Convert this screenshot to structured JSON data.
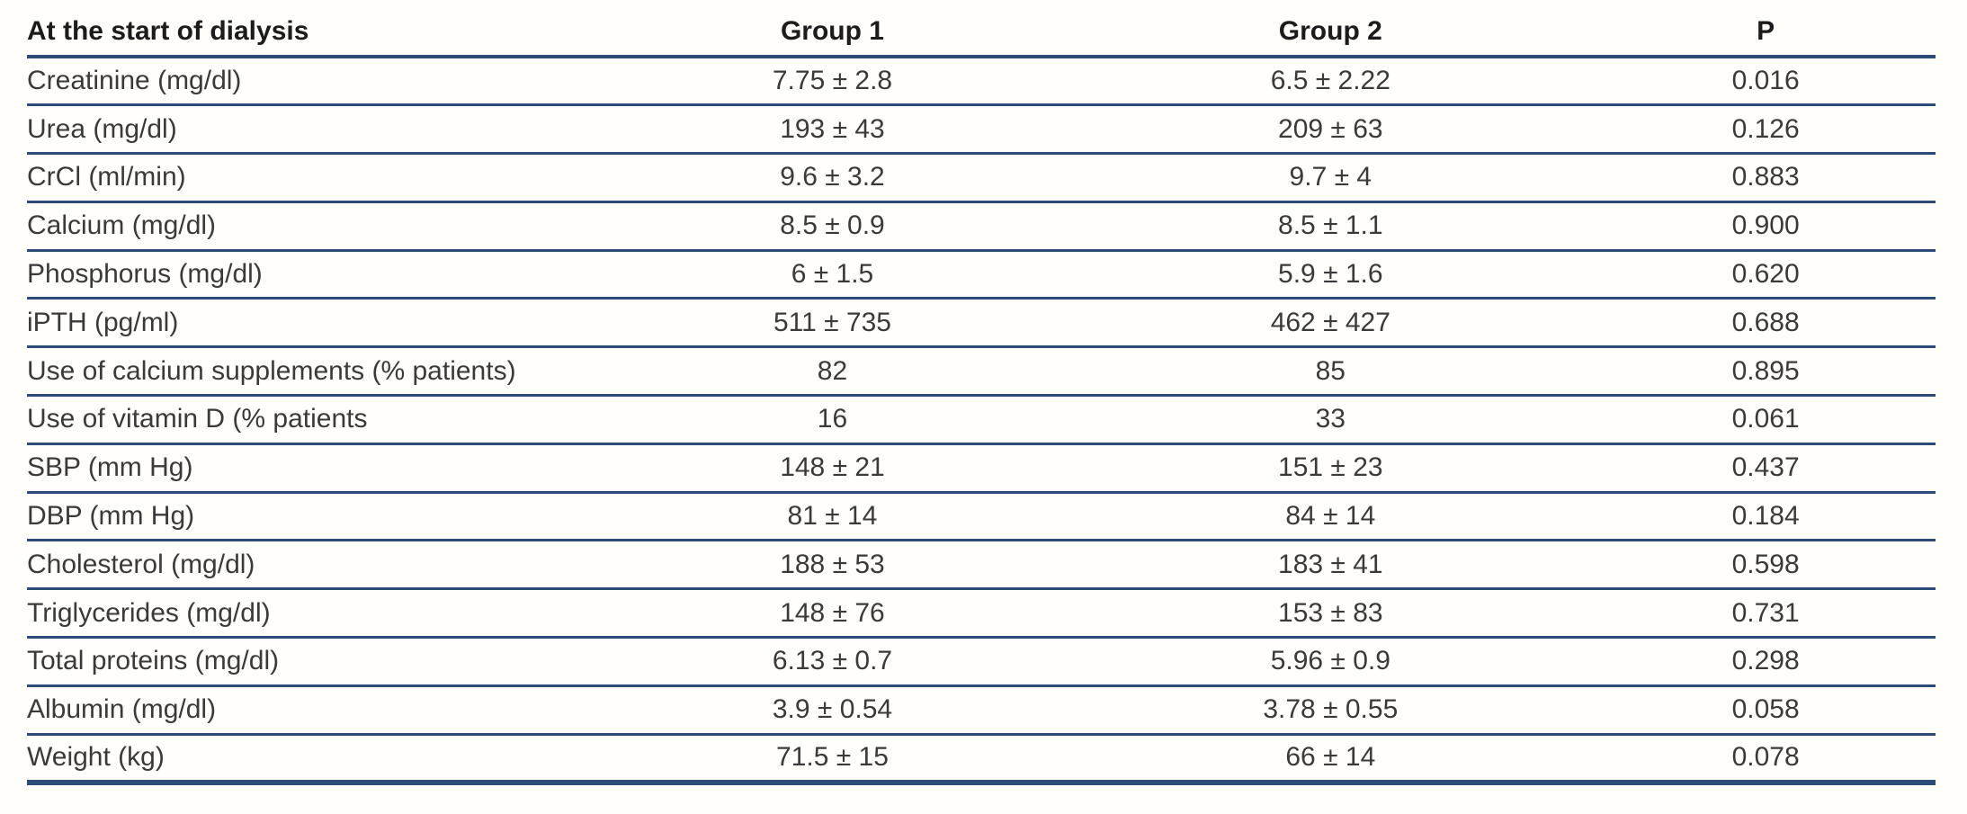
{
  "table": {
    "headers": {
      "label": "At the start of dialysis",
      "group1": "Group 1",
      "group2": "Group 2",
      "p": "P"
    },
    "rows": [
      {
        "label": "Creatinine (mg/dl)",
        "group1": "7.75 ± 2.8",
        "group2": "6.5 ± 2.22",
        "p": "0.016"
      },
      {
        "label": "Urea (mg/dl)",
        "group1": "193 ± 43",
        "group2": "209 ± 63",
        "p": "0.126"
      },
      {
        "label": "CrCl (ml/min)",
        "group1": "9.6 ± 3.2",
        "group2": "9.7 ± 4",
        "p": "0.883"
      },
      {
        "label": "Calcium (mg/dl)",
        "group1": "8.5 ± 0.9",
        "group2": "8.5 ± 1.1",
        "p": "0.900"
      },
      {
        "label": "Phosphorus (mg/dl)",
        "group1": "6 ± 1.5",
        "group2": "5.9 ± 1.6",
        "p": "0.620"
      },
      {
        "label": "iPTH (pg/ml)",
        "group1": "511 ± 735",
        "group2": "462 ± 427",
        "p": "0.688"
      },
      {
        "label": "Use of calcium supplements (% patients)",
        "group1": "82",
        "group2": "85",
        "p": "0.895"
      },
      {
        "label": "Use of vitamin D (% patients",
        "group1": "16",
        "group2": "33",
        "p": "0.061"
      },
      {
        "label": "SBP (mm Hg)",
        "group1": "148 ± 21",
        "group2": "151 ± 23",
        "p": "0.437"
      },
      {
        "label": "DBP (mm Hg)",
        "group1": "81 ± 14",
        "group2": "84 ± 14",
        "p": "0.184"
      },
      {
        "label": "Cholesterol (mg/dl)",
        "group1": "188 ± 53",
        "group2": "183 ± 41",
        "p": "0.598"
      },
      {
        "label": "Triglycerides (mg/dl)",
        "group1": "148 ± 76",
        "group2": "153 ± 83",
        "p": "0.731"
      },
      {
        "label": "Total proteins (mg/dl)",
        "group1": "6.13 ± 0.7",
        "group2": "5.96 ± 0.9",
        "p": "0.298"
      },
      {
        "label": "Albumin (mg/dl)",
        "group1": "3.9 ± 0.54",
        "group2": "3.78 ± 0.55",
        "p": "0.058"
      },
      {
        "label": "Weight (kg)",
        "group1": "71.5 ± 15",
        "group2": "66 ± 14",
        "p": "0.078"
      }
    ]
  },
  "colors": {
    "rule": "#2b4c78",
    "text": "#3a3a3a",
    "header_text": "#1c1c1c",
    "background": "#fffefa"
  }
}
